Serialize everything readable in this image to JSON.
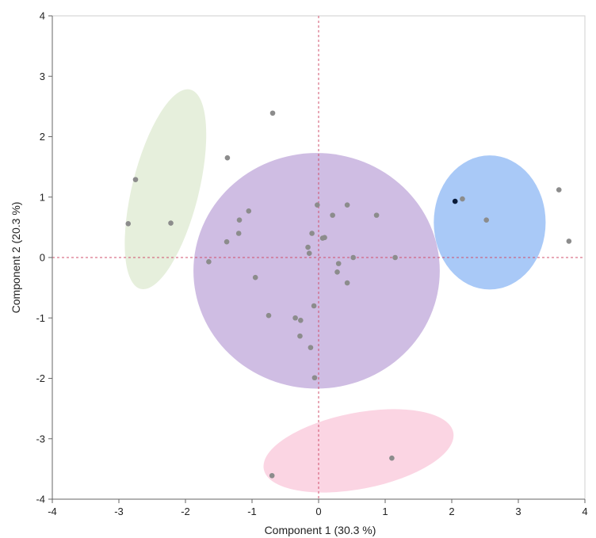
{
  "chart_data": {
    "type": "scatter",
    "title": "",
    "xlabel": "Component 1  (30.3 %)",
    "ylabel": "Component 2  (20.3 %)",
    "xlim": [
      -4,
      4
    ],
    "ylim": [
      -4,
      4
    ],
    "xticks": [
      -4,
      -3,
      -2,
      -1,
      0,
      1,
      2,
      3,
      4
    ],
    "yticks": [
      -4,
      -3,
      -2,
      -1,
      0,
      1,
      2,
      3,
      4
    ],
    "grid": false,
    "reference_lines": {
      "x": 0,
      "y": 0,
      "color": "#d0506e"
    },
    "ellipses": [
      {
        "name": "cluster-green",
        "color": "#e6efdc",
        "cx": -2.3,
        "cy": 1.13,
        "rx": 0.5,
        "ry": 1.7,
        "angle_deg": 14
      },
      {
        "name": "cluster-purple",
        "color": "#cfbde3",
        "cx": -0.03,
        "cy": -0.22,
        "rx": 1.85,
        "ry": 1.95,
        "angle_deg": 0
      },
      {
        "name": "cluster-blue",
        "color": "#a9c9f7",
        "cx": 2.57,
        "cy": 0.58,
        "rx": 0.84,
        "ry": 1.11,
        "angle_deg": 0
      },
      {
        "name": "cluster-pink",
        "color": "#fbd5e3",
        "cx": 0.6,
        "cy": -3.2,
        "rx": 1.45,
        "ry": 0.63,
        "angle_deg": -11
      }
    ],
    "point_color": "#8c8c8c",
    "highlight_color": "#0a1c3a",
    "points": [
      {
        "x": -2.75,
        "y": 1.29
      },
      {
        "x": -2.86,
        "y": 0.56
      },
      {
        "x": -2.22,
        "y": 0.57
      },
      {
        "x": -0.69,
        "y": 2.39
      },
      {
        "x": -1.37,
        "y": 1.65
      },
      {
        "x": -1.05,
        "y": 0.77
      },
      {
        "x": -1.19,
        "y": 0.62
      },
      {
        "x": -1.2,
        "y": 0.4
      },
      {
        "x": -1.38,
        "y": 0.26
      },
      {
        "x": -1.65,
        "y": -0.07
      },
      {
        "x": -0.95,
        "y": -0.33
      },
      {
        "x": -0.75,
        "y": -0.96
      },
      {
        "x": -0.35,
        "y": -1.0
      },
      {
        "x": -0.27,
        "y": -1.04
      },
      {
        "x": -0.28,
        "y": -1.3
      },
      {
        "x": -0.12,
        "y": -1.49
      },
      {
        "x": -0.06,
        "y": -1.99
      },
      {
        "x": -0.07,
        "y": -0.8
      },
      {
        "x": -0.02,
        "y": 0.87
      },
      {
        "x": -0.1,
        "y": 0.4
      },
      {
        "x": -0.16,
        "y": 0.17
      },
      {
        "x": -0.14,
        "y": 0.07
      },
      {
        "x": 0.06,
        "y": 0.32
      },
      {
        "x": 0.09,
        "y": 0.33
      },
      {
        "x": 0.21,
        "y": 0.7
      },
      {
        "x": 0.43,
        "y": 0.87
      },
      {
        "x": 0.87,
        "y": 0.7
      },
      {
        "x": 0.52,
        "y": 0.0
      },
      {
        "x": 0.3,
        "y": -0.1
      },
      {
        "x": 0.28,
        "y": -0.24
      },
      {
        "x": 0.43,
        "y": -0.42
      },
      {
        "x": 1.15,
        "y": 0.0
      },
      {
        "x": 2.05,
        "y": 0.93,
        "highlight": true
      },
      {
        "x": 2.16,
        "y": 0.97
      },
      {
        "x": 2.52,
        "y": 0.62
      },
      {
        "x": 3.61,
        "y": 1.12
      },
      {
        "x": 3.76,
        "y": 0.27
      },
      {
        "x": -0.7,
        "y": -3.61
      },
      {
        "x": 1.1,
        "y": -3.32
      }
    ]
  }
}
